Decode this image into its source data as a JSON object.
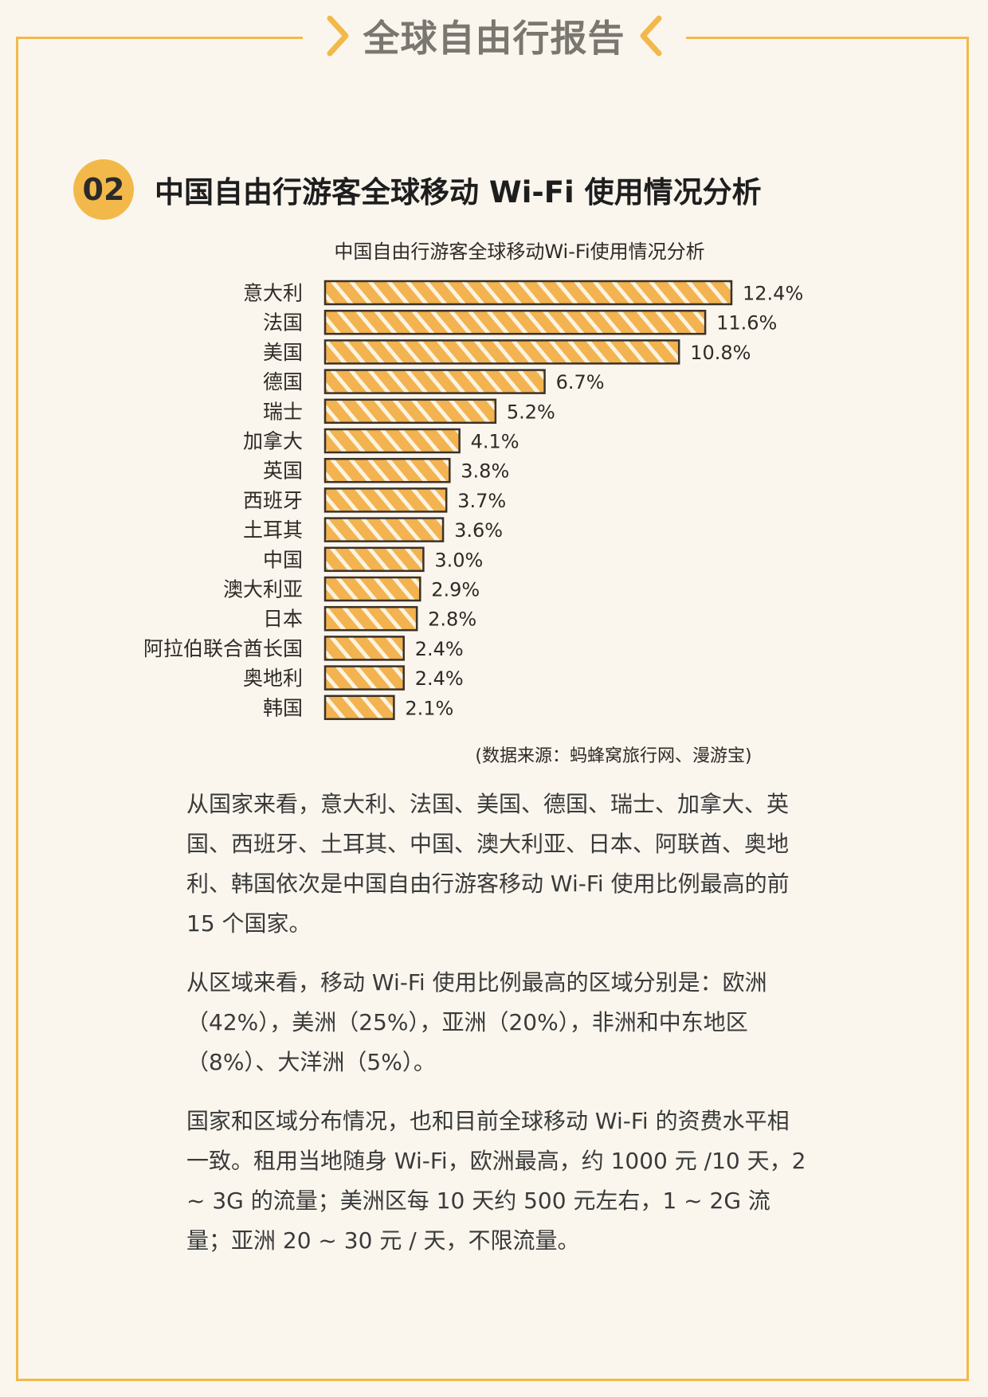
{
  "header": {
    "title": "全球自由行报告"
  },
  "section": {
    "number": "02",
    "title": "中国自由行游客全球移动 Wi-Fi 使用情况分析"
  },
  "chart_data": {
    "type": "bar",
    "orientation": "horizontal",
    "title": "中国自由行游客全球移动Wi-Fi使用情况分析",
    "source": "(数据来源：蚂蜂窝旅行网、漫游宝)",
    "categories": [
      "意大利",
      "法国",
      "美国",
      "德国",
      "瑞士",
      "加拿大",
      "英国",
      "西班牙",
      "土耳其",
      "中国",
      "澳大利亚",
      "日本",
      "阿拉伯联合酋长国",
      "奥地利",
      "韩国"
    ],
    "values": [
      12.4,
      11.6,
      10.8,
      6.7,
      5.2,
      4.1,
      3.8,
      3.7,
      3.6,
      3.0,
      2.9,
      2.8,
      2.4,
      2.4,
      2.1
    ],
    "value_labels": [
      "12.4%",
      "11.6%",
      "10.8%",
      "6.7%",
      "5.2%",
      "4.1%",
      "3.8%",
      "3.7%",
      "3.6%",
      "3.0%",
      "2.9%",
      "2.8%",
      "2.4%",
      "2.4%",
      "2.1%"
    ],
    "xlim": [
      0,
      12.4
    ],
    "bar_color": "#f2b350",
    "grid": false
  },
  "body": {
    "p1": "从国家来看，意大利、法国、美国、德国、瑞士、加拿大、英国、西班牙、土耳其、中国、澳大利亚、日本、阿联酋、奥地利、韩国依次是中国自由行游客移动 Wi-Fi 使用比例最高的前 15 个国家。",
    "p2": "从区域来看，移动 Wi-Fi 使用比例最高的区域分别是：欧洲（42%），美洲（25%），亚洲（20%），非洲和中东地区（8%）、大洋洲（5%）。",
    "p3": "国家和区域分布情况，也和目前全球移动 Wi-Fi 的资费水平相一致。租用当地随身 Wi-Fi，欧洲最高，约 1000 元 /10 天，2 ~ 3G 的流量；美洲区每 10 天约 500 元左右，1 ~ 2G 流量；亚洲 20 ~ 30 元 / 天，不限流量。"
  }
}
